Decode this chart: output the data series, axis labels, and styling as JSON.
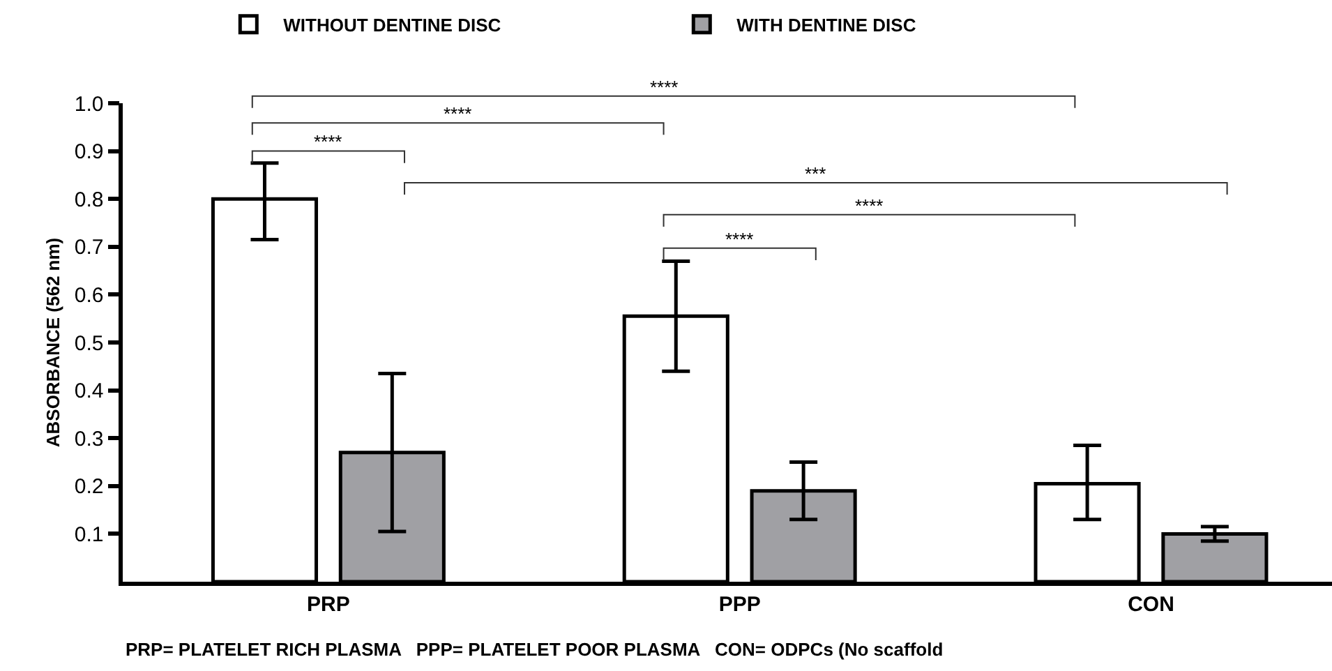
{
  "chart_data": {
    "type": "bar",
    "ylabel": "ABSORBANCE (562 nm)",
    "categories": [
      "PRP",
      "PPP",
      "CON"
    ],
    "series": [
      {
        "name": "WITHOUT DENTINE DISC",
        "color": "#ffffff",
        "values": [
          0.8,
          0.555,
          0.205
        ],
        "errors": [
          [
            0.715,
            0.875
          ],
          [
            0.44,
            0.67
          ],
          [
            0.13,
            0.285
          ]
        ]
      },
      {
        "name": "WITH DENTINE DISC",
        "color": "#a0a0a4",
        "values": [
          0.27,
          0.19,
          0.1
        ],
        "errors": [
          [
            0.105,
            0.435
          ],
          [
            0.13,
            0.25
          ],
          [
            0.085,
            0.115
          ]
        ]
      }
    ],
    "ylim": [
      0,
      1.0
    ],
    "yticks": [
      0.1,
      0.2,
      0.3,
      0.4,
      0.5,
      0.6,
      0.7,
      0.8,
      0.9,
      {
        "value": 1.0,
        "label": "1.0"
      }
    ],
    "legend": "top",
    "annotations": [
      "****",
      "****",
      "****",
      "***",
      "****",
      "****",
      "PRP= PLATELET RICH PLASMA   PPP= PLATELET POOR PLASMA   CON= ODPCs (No scaffold"
    ]
  }
}
